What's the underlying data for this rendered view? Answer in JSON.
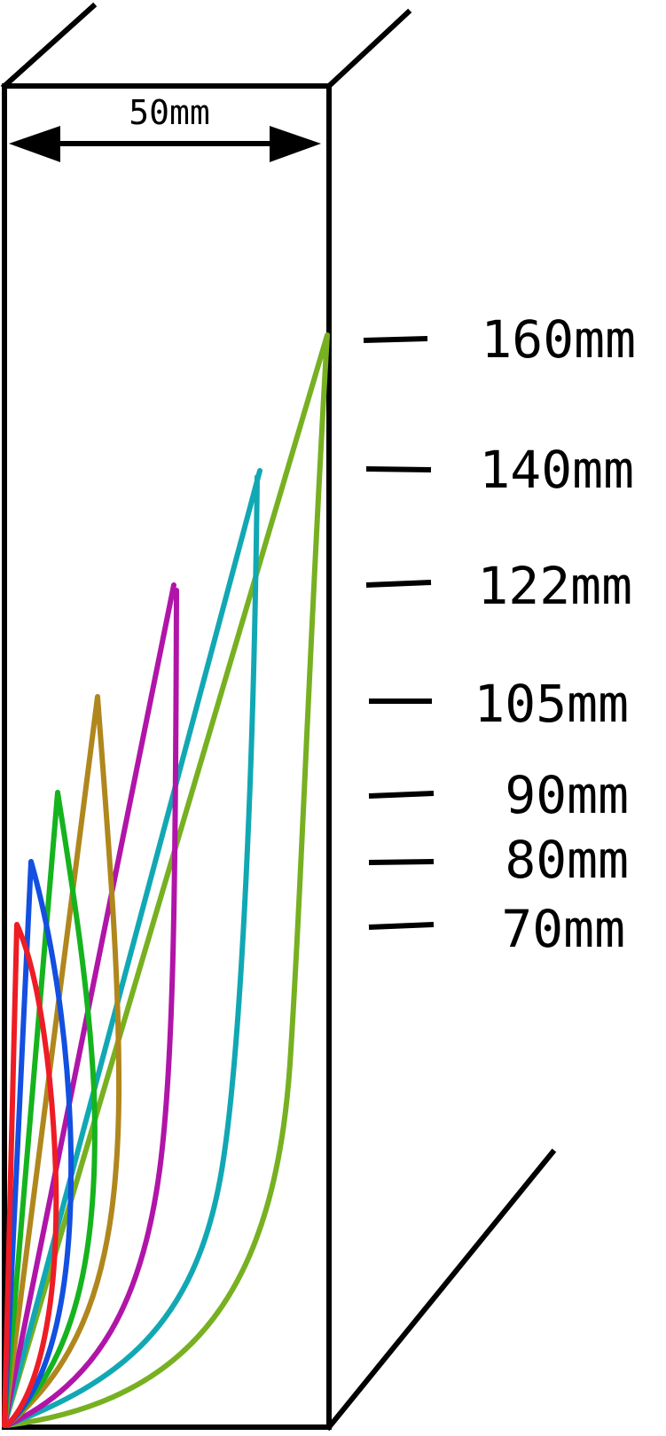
{
  "width_label": "50mm",
  "height_labels": [
    "160mm",
    "140mm",
    "122mm",
    "105mm",
    "90mm",
    "80mm",
    "70mm"
  ],
  "curves": [
    {
      "name": "curve-160mm",
      "color": "#77b021"
    },
    {
      "name": "curve-140mm",
      "color": "#11a8b4"
    },
    {
      "name": "curve-122mm",
      "color": "#b015a8"
    },
    {
      "name": "curve-105mm",
      "color": "#b0871d"
    },
    {
      "name": "curve-90mm",
      "color": "#15b31e"
    },
    {
      "name": "curve-80mm",
      "color": "#134fe0"
    },
    {
      "name": "curve-70mm",
      "color": "#ee1c24"
    }
  ],
  "outline_color": "#000000"
}
